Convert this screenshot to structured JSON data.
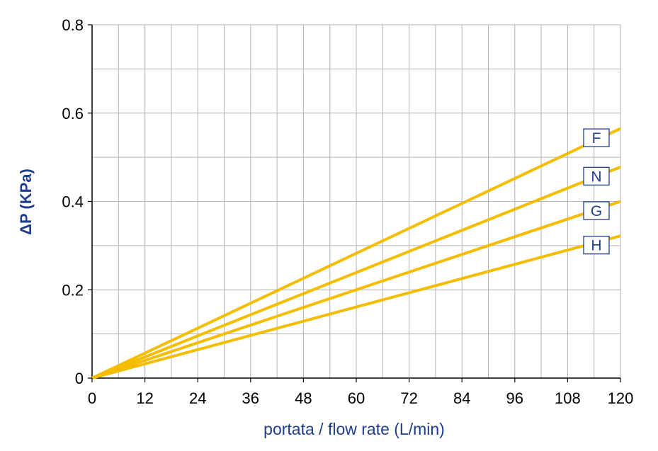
{
  "chart_data": {
    "type": "line",
    "title": "",
    "xlabel": "portata / flow rate (L/min)",
    "ylabel": "ΔP (KPa)",
    "xlim": [
      0,
      120
    ],
    "ylim": [
      0,
      0.8
    ],
    "xticks": [
      0,
      12,
      24,
      36,
      48,
      60,
      72,
      84,
      96,
      108,
      120
    ],
    "xtick_labels": [
      "0",
      "12",
      "24",
      "36",
      "48",
      "60",
      "72",
      "84",
      "96",
      "108",
      "120"
    ],
    "yticks": [
      0,
      0.2,
      0.4,
      0.6,
      0.8
    ],
    "ytick_labels": [
      "0",
      "0.2",
      "0.4",
      "0.6",
      "0.8"
    ],
    "minor_grid_step": {
      "x": 6,
      "y": 0.1
    },
    "grid": true,
    "series": [
      {
        "name": "F",
        "color": "#f5bd00",
        "x": [
          0,
          120
        ],
        "y": [
          0,
          0.565
        ]
      },
      {
        "name": "N",
        "color": "#f5bd00",
        "x": [
          0,
          120
        ],
        "y": [
          0,
          0.478
        ]
      },
      {
        "name": "G",
        "color": "#f5bd00",
        "x": [
          0,
          120
        ],
        "y": [
          0,
          0.4
        ]
      },
      {
        "name": "H",
        "color": "#f5bd00",
        "x": [
          0,
          120
        ],
        "y": [
          0,
          0.322
        ]
      }
    ],
    "colors": {
      "line": "#f5bd00",
      "label_text": "#1f3e8c",
      "grid": "#b3b3b3",
      "axis": "#000000"
    }
  }
}
